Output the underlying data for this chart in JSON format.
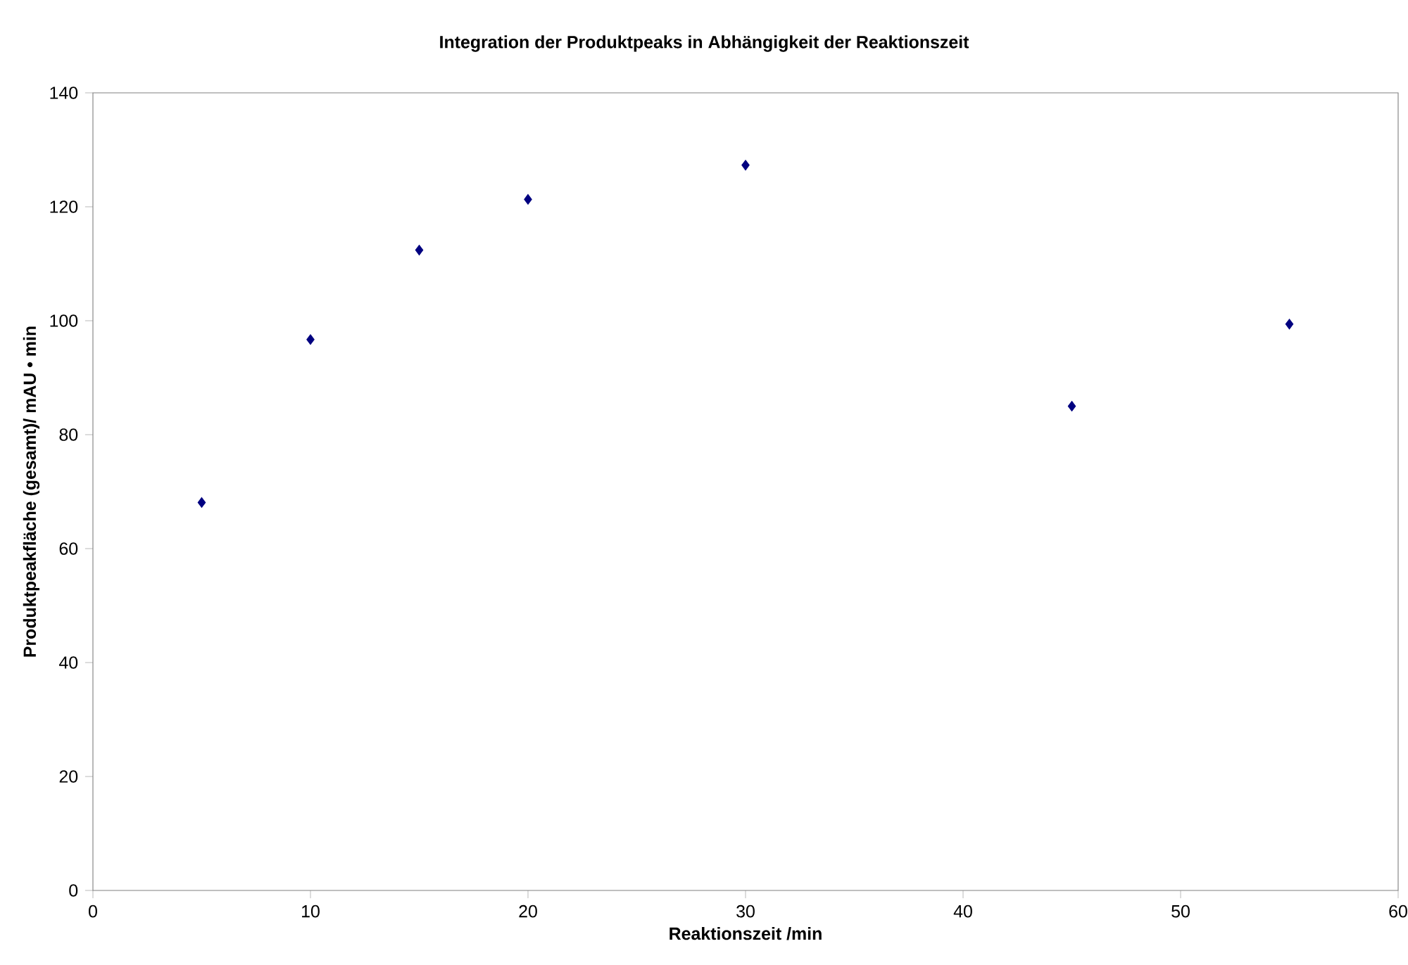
{
  "chart_data": {
    "type": "scatter",
    "title": "Integration der Produktpeaks in Abhängigkeit der Reaktionszeit",
    "xlabel": "Reaktionszeit /min",
    "ylabel": "Produktpeakfläche (gesamt)/ mAU • min",
    "x": [
      5,
      10,
      15,
      20,
      30,
      45,
      55
    ],
    "values": [
      68.1,
      96.7,
      112.4,
      121.3,
      127.3,
      85.0,
      99.4
    ],
    "color": "#000080",
    "marker": "diamond",
    "xlim": [
      0,
      60
    ],
    "xticks": [
      0,
      10,
      20,
      30,
      40,
      50,
      60
    ],
    "ylim": [
      0,
      140
    ],
    "yticks": [
      0,
      20,
      40,
      60,
      80,
      100,
      120,
      140
    ]
  }
}
